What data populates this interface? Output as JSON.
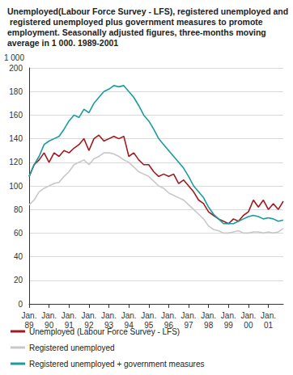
{
  "chart_data": {
    "type": "line",
    "title": "Unemployed(Labour Force Survey - LFS), registered unemployed and  registered unemployed plus government measures to promote employment. Seasonally adjusted figures, three-months moving average in 1 000. 1989-2001",
    "ylabel": "1 000",
    "categories": [
      "Jan.\n89",
      null,
      null,
      null,
      "Jan.\n90",
      null,
      null,
      null,
      "Jan.\n91",
      null,
      null,
      null,
      "Jan.\n92",
      null,
      null,
      null,
      "Jan.\n93",
      null,
      null,
      null,
      "Jan.\n94",
      null,
      null,
      null,
      "Jan.\n95",
      null,
      null,
      null,
      "Jan.\n96",
      null,
      null,
      null,
      "Jan.\n97",
      null,
      null,
      null,
      "Jan.\n98",
      null,
      null,
      null,
      "Jan.\n99",
      null,
      null,
      null,
      "Jan.\n00",
      null,
      null,
      null,
      "Jan.\n01",
      null,
      null,
      null
    ],
    "series": [
      {
        "name": "Unemployed (Labour Force Survey - LFS)",
        "color": "#a01a1e",
        "values": [
          108,
          118,
          122,
          128,
          120,
          128,
          125,
          130,
          128,
          132,
          135,
          140,
          130,
          140,
          143,
          138,
          140,
          142,
          140,
          142,
          125,
          128,
          122,
          118,
          118,
          112,
          108,
          110,
          108,
          110,
          102,
          105,
          100,
          95,
          88,
          85,
          78,
          75,
          72,
          70,
          68,
          72,
          70,
          75,
          78,
          88,
          82,
          88,
          80,
          85,
          80,
          87
        ]
      },
      {
        "name": "Registered unemployed",
        "color": "#c8c8c8",
        "values": [
          84,
          88,
          95,
          98,
          100,
          102,
          103,
          108,
          112,
          118,
          120,
          122,
          118,
          123,
          125,
          128,
          128,
          127,
          125,
          122,
          120,
          116,
          112,
          110,
          108,
          104,
          100,
          98,
          94,
          92,
          90,
          88,
          84,
          80,
          76,
          72,
          66,
          63,
          62,
          60,
          60,
          61,
          62,
          60,
          60,
          61,
          61,
          60,
          61,
          60,
          61,
          64
        ]
      },
      {
        "name": "Registered unemployed + government measures",
        "color": "#1a9c9c",
        "values": [
          108,
          118,
          125,
          135,
          138,
          140,
          142,
          148,
          155,
          160,
          158,
          165,
          162,
          170,
          175,
          180,
          182,
          185,
          184,
          185,
          180,
          175,
          168,
          160,
          155,
          148,
          140,
          135,
          130,
          125,
          120,
          115,
          108,
          100,
          95,
          90,
          82,
          76,
          72,
          68,
          68,
          68,
          70,
          72,
          74,
          75,
          74,
          72,
          73,
          72,
          70,
          71
        ]
      }
    ],
    "ylim": [
      0,
      200
    ],
    "yticks": [
      0,
      20,
      40,
      60,
      80,
      100,
      120,
      140,
      160,
      180,
      200
    ],
    "grid": true,
    "legend": "bottom"
  }
}
